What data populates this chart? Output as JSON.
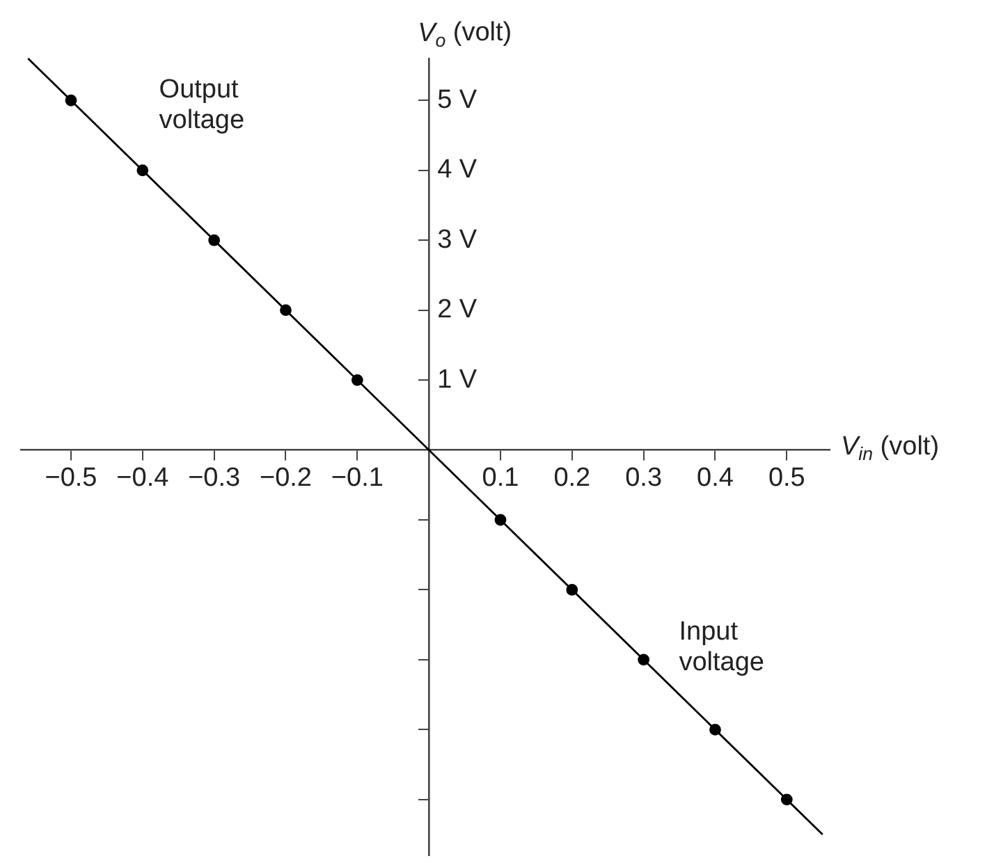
{
  "chart_data": {
    "type": "line",
    "xlabel": "V$_{in}$ (volt)",
    "ylabel": "V$_{o}$ (volt)",
    "xlim": [
      -0.57,
      0.56
    ],
    "ylim": [
      -5.8,
      5.6
    ],
    "xticks": [
      {
        "value": -0.5,
        "label": "−0.5"
      },
      {
        "value": -0.4,
        "label": "−0.4"
      },
      {
        "value": -0.3,
        "label": "−0.3"
      },
      {
        "value": -0.2,
        "label": "−0.2"
      },
      {
        "value": -0.1,
        "label": "−0.1"
      },
      0.1,
      0.2,
      0.3,
      0.4,
      0.5
    ],
    "yticks": [
      {
        "value": -5,
        "label": null
      },
      {
        "value": -4,
        "label": null
      },
      {
        "value": -3,
        "label": null
      },
      {
        "value": -2,
        "label": null
      },
      {
        "value": -1,
        "label": null
      },
      {
        "value": 1,
        "label": "1 V"
      },
      {
        "value": 2,
        "label": "2 V"
      },
      {
        "value": 3,
        "label": "3 V"
      },
      {
        "value": 4,
        "label": "4 V"
      },
      {
        "value": 5,
        "label": "5 V"
      }
    ],
    "series": [
      {
        "type": "line",
        "color": "#000000",
        "marker": "none",
        "x": [
          -0.56,
          0.55
        ],
        "values": [
          5.6,
          -5.5
        ]
      },
      {
        "type": "scatter",
        "color": "#000000",
        "marker": "circle",
        "x": [
          -0.5,
          -0.4,
          -0.3,
          -0.2,
          -0.1,
          0.1,
          0.2,
          0.3,
          0.4,
          0.5
        ],
        "values": [
          5,
          4,
          3,
          2,
          1,
          -1,
          -2,
          -3,
          -4,
          -5
        ]
      }
    ],
    "annotations": [
      "Output voltage",
      "Input voltage"
    ],
    "grid": false,
    "legend": false
  }
}
